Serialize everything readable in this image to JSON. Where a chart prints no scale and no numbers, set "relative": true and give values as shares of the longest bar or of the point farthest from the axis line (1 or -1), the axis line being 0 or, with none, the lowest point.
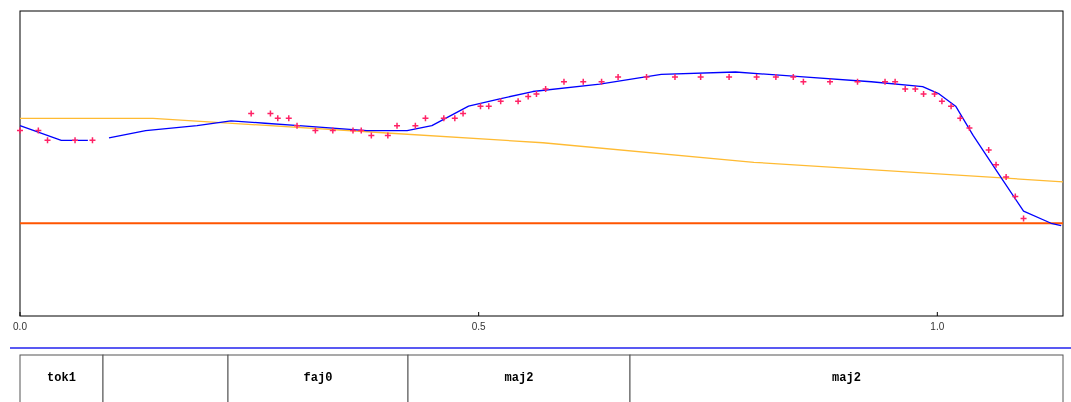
{
  "chart_data": {
    "type": "line",
    "relative": true,
    "xlim": [
      0,
      1.137
    ],
    "xticks": [
      {
        "value": 0,
        "label": "0.0"
      },
      0.5,
      {
        "value": 1,
        "label": "1.0"
      }
    ],
    "grid": false,
    "legend": false,
    "series": [
      {
        "type": "line",
        "color": "#ffbb33",
        "marker": "none",
        "x": [
          0,
          0.145,
          0.4,
          0.57,
          0.8,
          1.137
        ],
        "values": [
          0.81,
          0.81,
          0.75,
          0.71,
          0.63,
          0.55
        ]
      },
      {
        "type": "line",
        "color": "#0000ff",
        "marker": "none",
        "x": [
          0,
          0.045,
          0.074,
          0.085,
          0.097,
          0.137,
          0.193,
          0.23,
          0.267,
          0.304,
          0.341,
          0.378,
          0.422,
          0.449,
          0.489,
          0.523,
          0.559,
          0.632,
          0.699,
          0.78,
          0.854,
          0.928,
          0.984,
          1.002,
          1.02,
          1.039,
          1.069,
          1.094,
          1.124,
          1.135
        ],
        "values": [
          0.78,
          0.72,
          0.72,
          null,
          0.73,
          0.76,
          0.78,
          0.8,
          0.79,
          0.78,
          0.77,
          0.76,
          0.76,
          0.78,
          0.86,
          0.89,
          0.92,
          0.95,
          0.99,
          1.0,
          0.98,
          0.96,
          0.94,
          0.91,
          0.86,
          0.74,
          0.57,
          0.43,
          0.38,
          0.37
        ]
      },
      {
        "type": "scatter",
        "color": "#ff2266",
        "marker": "cross",
        "x": [
          0,
          0.02,
          0.03,
          0.06,
          0.079,
          0.252,
          0.273,
          0.281,
          0.293,
          0.302,
          0.322,
          0.341,
          0.363,
          0.372,
          0.383,
          0.401,
          0.411,
          0.431,
          0.442,
          0.462,
          0.474,
          0.483,
          0.502,
          0.511,
          0.524,
          0.543,
          0.554,
          0.563,
          0.573,
          0.593,
          0.614,
          0.634,
          0.652,
          0.683,
          0.714,
          0.742,
          0.773,
          0.803,
          0.824,
          0.843,
          0.854,
          0.883,
          0.913,
          0.943,
          0.954,
          0.965,
          0.976,
          0.985,
          0.997,
          1.005,
          1.015,
          1.025,
          1.035,
          1.056,
          1.064,
          1.075,
          1.085,
          1.094
        ],
        "values": [
          0.76,
          0.76,
          0.72,
          0.72,
          0.72,
          0.83,
          0.83,
          0.81,
          0.81,
          0.78,
          0.76,
          0.76,
          0.76,
          0.76,
          0.74,
          0.74,
          0.78,
          0.78,
          0.81,
          0.81,
          0.81,
          0.83,
          0.86,
          0.86,
          0.88,
          0.88,
          0.9,
          0.91,
          0.93,
          0.96,
          0.96,
          0.96,
          0.98,
          0.98,
          0.98,
          0.98,
          0.98,
          0.98,
          0.98,
          0.98,
          0.96,
          0.96,
          0.96,
          0.96,
          0.96,
          0.93,
          0.93,
          0.91,
          0.91,
          0.88,
          0.86,
          0.81,
          0.77,
          0.68,
          0.62,
          0.57,
          0.49,
          0.4
        ]
      }
    ],
    "ref_lines": [
      {
        "axis": "y",
        "value": 0.38,
        "color": "#ff5500"
      }
    ],
    "annotations": [
      "tok1",
      "faj0",
      "maj2",
      "maj2"
    ]
  }
}
